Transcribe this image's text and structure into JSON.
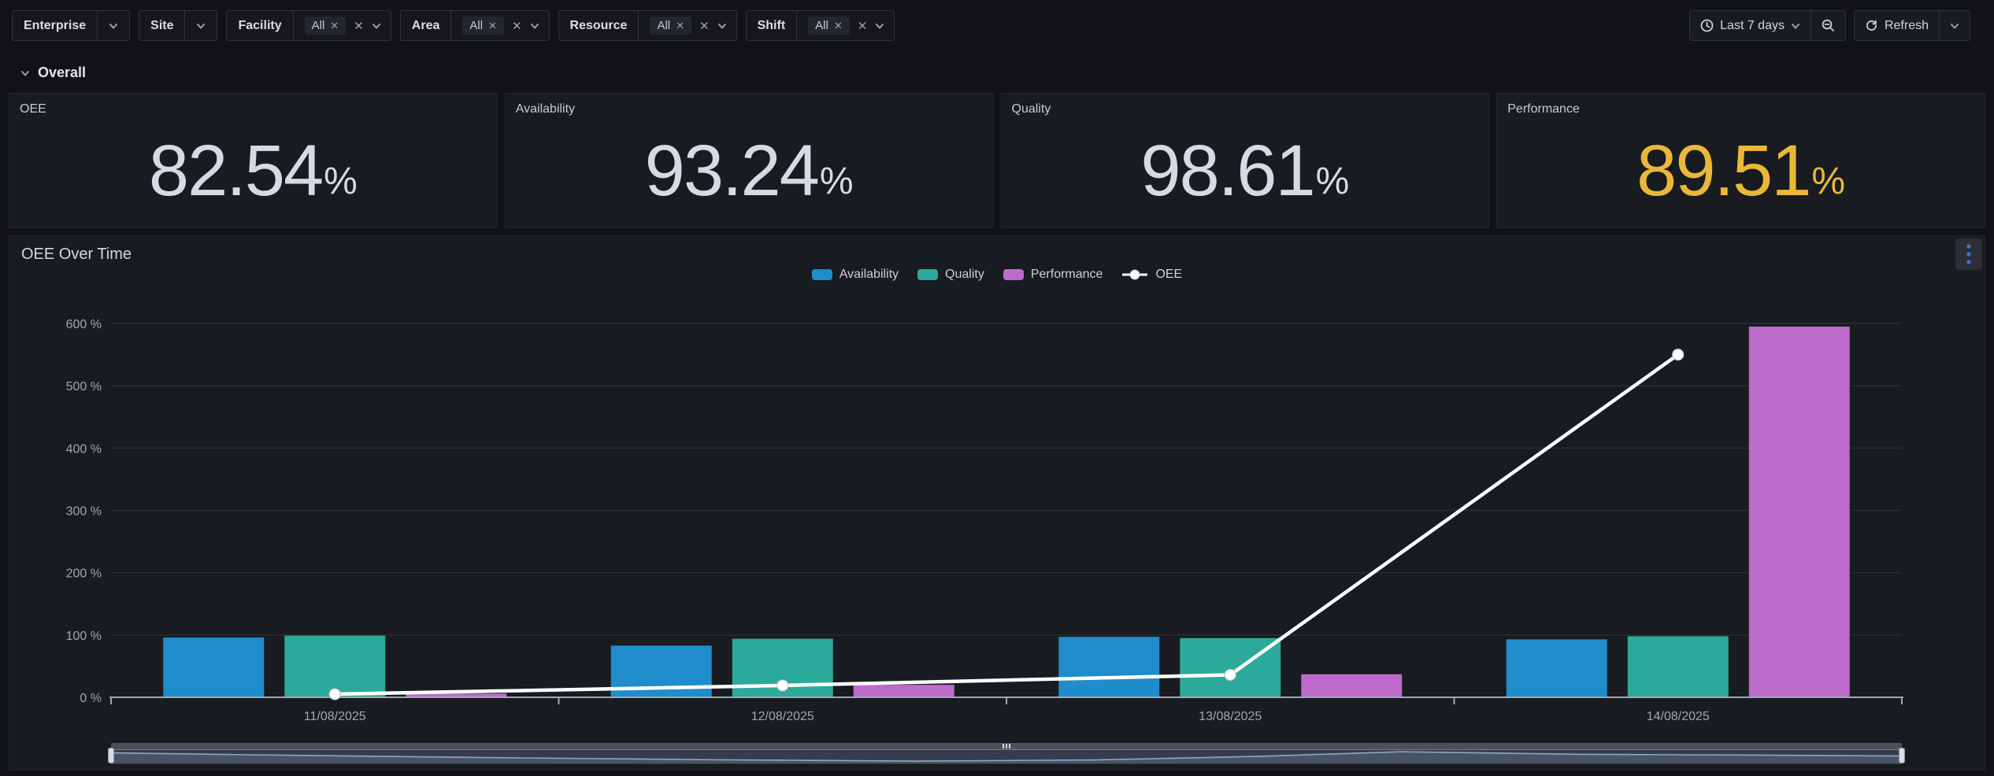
{
  "filters": [
    {
      "label": "Enterprise"
    },
    {
      "label": "Site"
    },
    {
      "label": "Facility",
      "value": "All"
    },
    {
      "label": "Area",
      "value": "All"
    },
    {
      "label": "Resource",
      "value": "All"
    },
    {
      "label": "Shift",
      "value": "All"
    }
  ],
  "time_controls": {
    "range_label": "Last 7 days",
    "refresh_label": "Refresh"
  },
  "section": {
    "title": "Overall"
  },
  "stats": [
    {
      "title": "OEE",
      "value": "82.54",
      "unit": "%",
      "color": "#D8D9E3"
    },
    {
      "title": "Availability",
      "value": "93.24",
      "unit": "%",
      "color": "#D8D9E3"
    },
    {
      "title": "Quality",
      "value": "98.61",
      "unit": "%",
      "color": "#D8D9E3"
    },
    {
      "title": "Performance",
      "value": "89.51",
      "unit": "%",
      "color": "#EAB839"
    }
  ],
  "chart_panel": {
    "title": "OEE Over Time"
  },
  "chart_data": {
    "type": "bar+line",
    "categories": [
      "11/08/2025",
      "12/08/2025",
      "13/08/2025",
      "14/08/2025"
    ],
    "series": [
      {
        "name": "Availability",
        "type": "bar",
        "color": "#1F8CCC",
        "values": [
          96,
          83,
          97,
          93
        ]
      },
      {
        "name": "Quality",
        "type": "bar",
        "color": "#2BA99A",
        "values": [
          99,
          94,
          95,
          98
        ]
      },
      {
        "name": "Performance",
        "type": "bar",
        "color": "#BC6BCB",
        "values": [
          6,
          20,
          37,
          595
        ]
      },
      {
        "name": "OEE",
        "type": "line",
        "color": "#FFFFFF",
        "values": [
          5,
          19,
          36,
          550
        ]
      }
    ],
    "ylim": [
      0,
      600
    ],
    "ytick_step": 100,
    "ytick_format": "{v} %",
    "grid": true,
    "legend_position": "top"
  }
}
